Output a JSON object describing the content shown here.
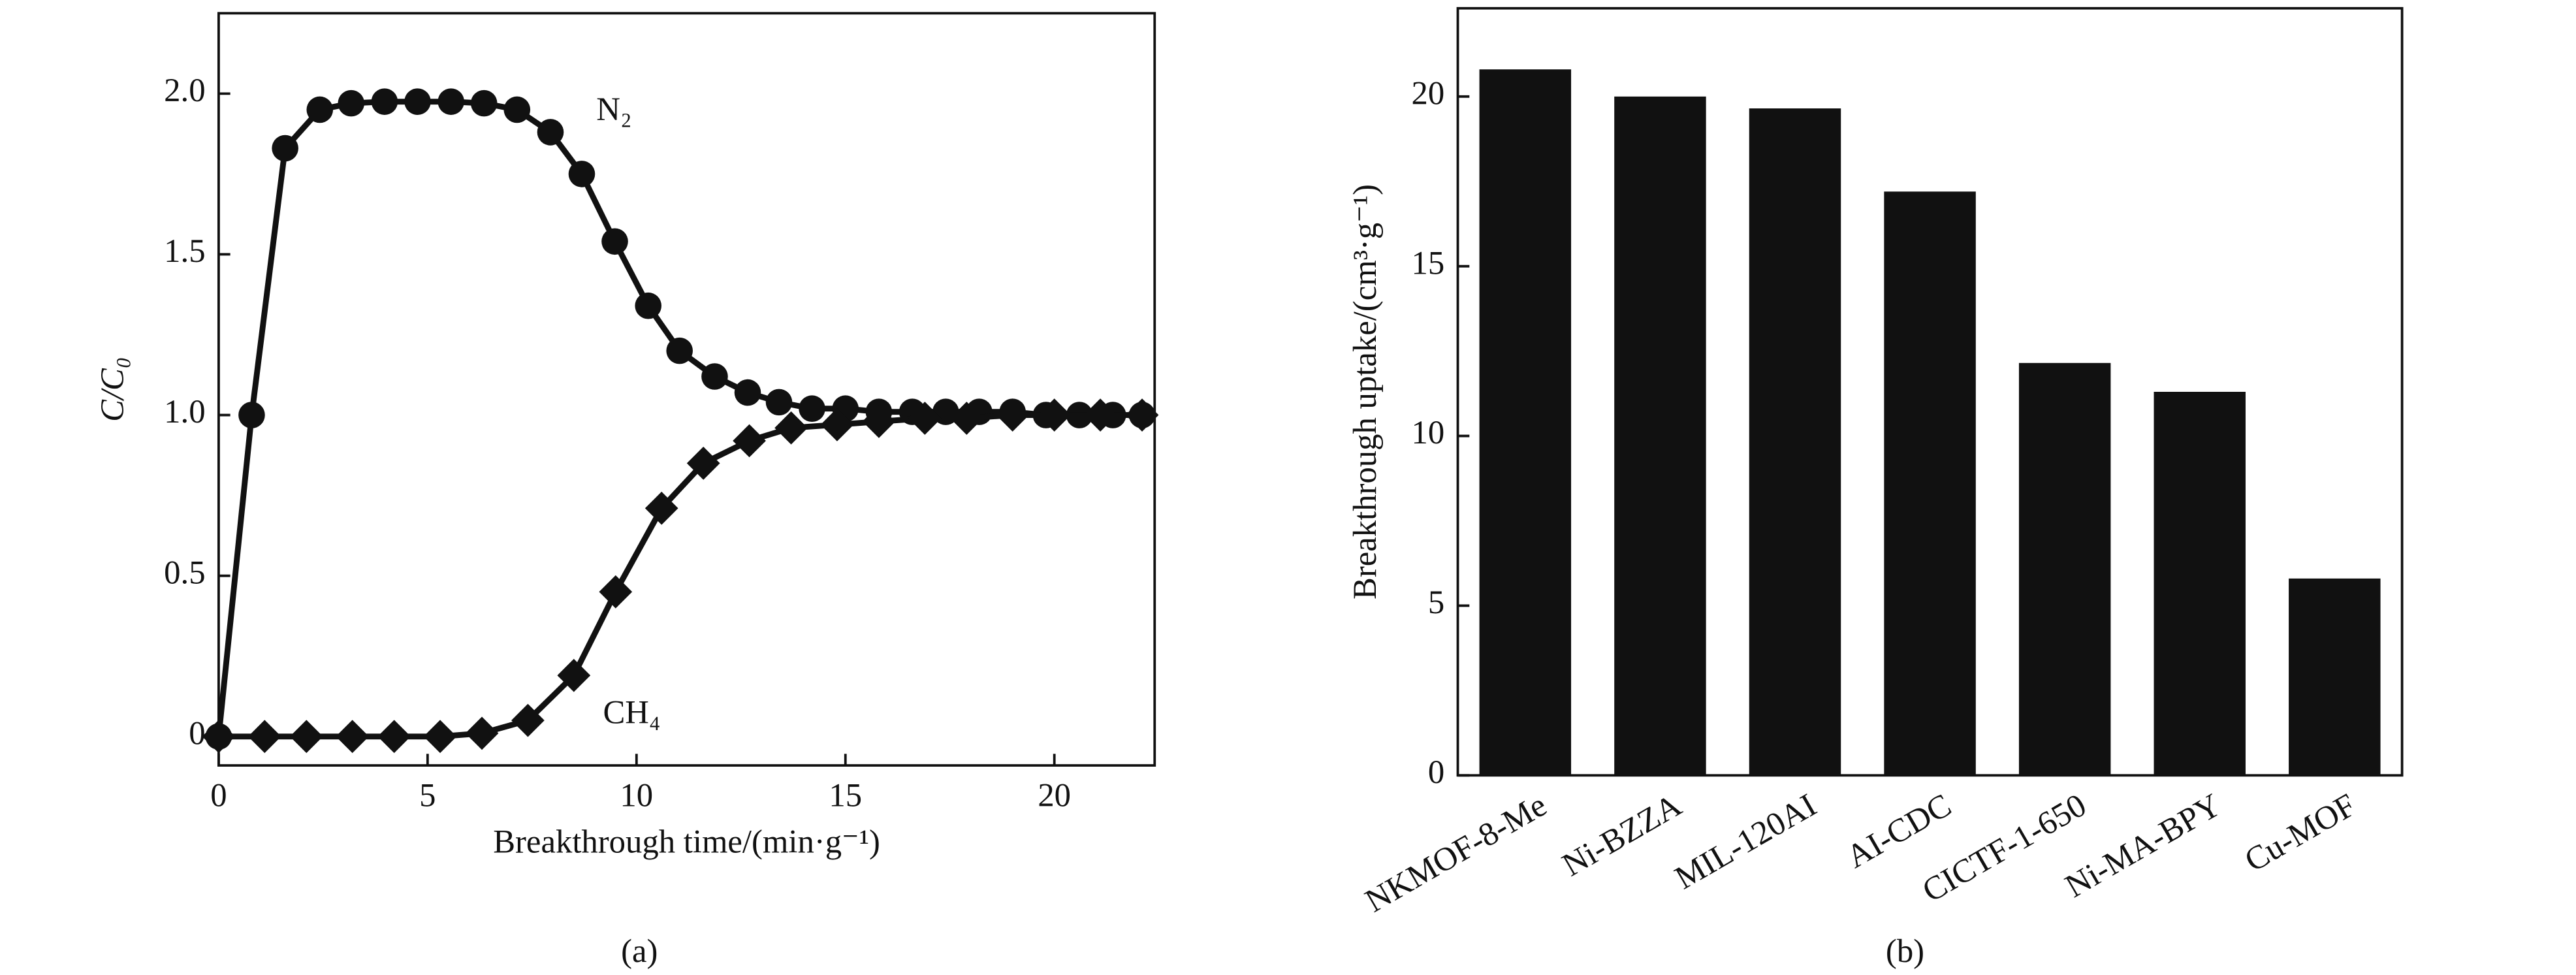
{
  "chart_data": [
    {
      "type": "line",
      "xlabel": "Breakthrough time/(min·g⁻¹)",
      "ylabel": "C/C₀",
      "caption": "(a)",
      "xlim": [
        0,
        22.4
      ],
      "ylim": [
        -0.09,
        2.25
      ],
      "xticks": [
        0,
        5,
        10,
        15,
        20
      ],
      "yticks": [
        0,
        0.5,
        {
          "value": 1,
          "label": "1.0"
        },
        1.5,
        {
          "value": 2,
          "label": "2.0"
        }
      ],
      "series": [
        {
          "name": "N₂",
          "color": "#111111",
          "marker": "circle",
          "x": [
            0,
            0.79,
            1.59,
            2.42,
            3.17,
            3.97,
            4.76,
            5.56,
            6.35,
            7.14,
            7.94,
            8.69,
            9.48,
            10.28,
            11.03,
            11.87,
            12.66,
            13.41,
            14.2,
            15.0,
            15.8,
            16.6,
            17.4,
            18.2,
            19.0,
            19.8,
            20.6,
            21.4,
            22.1
          ],
          "values": [
            0,
            1.0,
            1.83,
            1.95,
            1.97,
            1.975,
            1.975,
            1.975,
            1.97,
            1.95,
            1.88,
            1.75,
            1.54,
            1.34,
            1.2,
            1.12,
            1.07,
            1.04,
            1.02,
            1.02,
            1.01,
            1.01,
            1.01,
            1.01,
            1.01,
            1.0,
            1.0,
            1.0,
            1.0
          ]
        },
        {
          "name": "CH₄",
          "color": "#111111",
          "marker": "diamond",
          "x": [
            0,
            1.1,
            2.1,
            3.2,
            4.2,
            5.3,
            6.3,
            7.4,
            8.5,
            9.5,
            10.6,
            11.6,
            12.7,
            13.7,
            14.8,
            15.8,
            16.9,
            17.9,
            19.0,
            20.0,
            21.1,
            22.1
          ],
          "values": [
            0,
            0,
            0,
            0,
            0,
            0,
            0.01,
            0.05,
            0.19,
            0.45,
            0.71,
            0.85,
            0.92,
            0.96,
            0.97,
            0.98,
            0.99,
            0.99,
            1.0,
            1.0,
            1.0,
            1.0
          ]
        }
      ]
    },
    {
      "type": "bar",
      "ylabel": "Breakthrough uptake/(cm³·g⁻¹)",
      "caption": "(b)",
      "categories": [
        "NKMOF-8-Me",
        "Ni-BZZA",
        "MIL-120AI",
        "AI-CDC",
        "CICTF-1-650",
        "Ni-MA-BPY",
        "Cu-MOF"
      ],
      "values": [
        20.8,
        20.0,
        19.65,
        17.2,
        12.15,
        11.3,
        5.8
      ],
      "color": "#111111",
      "ylim": [
        0,
        22.6
      ],
      "yticks": [
        0,
        5,
        10,
        15,
        20
      ]
    }
  ]
}
